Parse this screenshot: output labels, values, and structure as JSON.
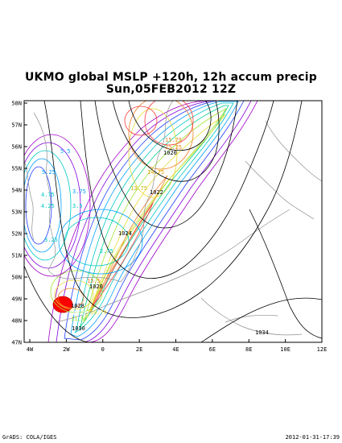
{
  "title_line1": "UKMO global MSLP +120h, 12h accum precip",
  "title_line2": "Sun,05FEB2012 12Z",
  "lat_labels": [
    "58N",
    "57N",
    "56N",
    "55N",
    "54N",
    "53N",
    "52N",
    "51N",
    "50N",
    "49N",
    "48N",
    "47N"
  ],
  "lon_labels": [
    "4W",
    "2W",
    "0",
    "2E",
    "4E",
    "6E",
    "8E",
    "10E",
    "12E"
  ],
  "isobar_labels": [
    "1020",
    "1022",
    "1024",
    "1026",
    "1028",
    "1030",
    "1034"
  ],
  "precip_labels": [
    "15.75",
    "15.25",
    "14.75",
    "13.75",
    "5.5",
    "5.25",
    "4.75",
    "4.25",
    "3.75",
    "3.5",
    "2.75",
    "3.25",
    "15.5",
    "16.25",
    "11.5",
    "10.75"
  ],
  "footer_left": "GrADS: COLA/IGES",
  "footer_right": "2012-01-31-17:39",
  "colors": {
    "frame": "#000000",
    "coast": "#909090",
    "isobar": "#000000",
    "heavy": "#ff0000"
  }
}
